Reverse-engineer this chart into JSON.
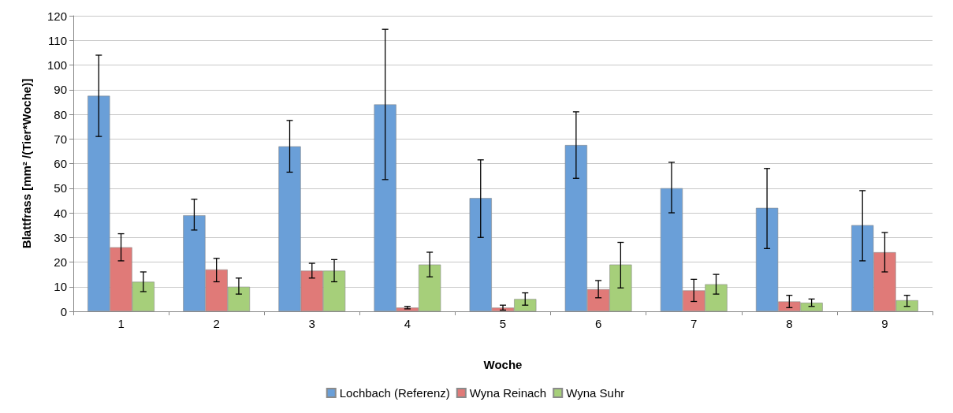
{
  "chart_data": {
    "type": "bar",
    "xlabel": "Woche",
    "ylabel": "Blattfrass [mm² /(Tier*Woche)]",
    "categories": [
      "1",
      "2",
      "3",
      "4",
      "5",
      "6",
      "7",
      "8",
      "9"
    ],
    "series": [
      {
        "name": "Lochbach (Referenz)",
        "color": "#6a9fd8",
        "values": [
          87.5,
          39,
          67,
          84,
          46,
          67.5,
          50,
          42,
          35
        ],
        "errors": [
          [
            71,
            104
          ],
          [
            33,
            45.5
          ],
          [
            56.5,
            77.5
          ],
          [
            53.5,
            114.5
          ],
          [
            30,
            61.5
          ],
          [
            54,
            81
          ],
          [
            40,
            60.5
          ],
          [
            25.5,
            58
          ],
          [
            20.5,
            49
          ]
        ]
      },
      {
        "name": "Wyna Reinach",
        "color": "#e07a78",
        "values": [
          26,
          17,
          16.5,
          1.5,
          1.5,
          9,
          8.5,
          4,
          24
        ],
        "errors": [
          [
            20.5,
            31.5
          ],
          [
            12,
            21.5
          ],
          [
            13.5,
            19.5
          ],
          [
            1,
            2
          ],
          [
            0.5,
            2.5
          ],
          [
            5.5,
            12.5
          ],
          [
            4,
            13
          ],
          [
            1.5,
            6.5
          ],
          [
            16,
            32
          ]
        ]
      },
      {
        "name": "Wyna Suhr",
        "color": "#a6cf7a",
        "values": [
          12,
          10,
          16.5,
          19,
          5,
          19,
          11,
          3.5,
          4.5
        ],
        "errors": [
          [
            8,
            16
          ],
          [
            7,
            13.5
          ],
          [
            12,
            21
          ],
          [
            14,
            24
          ],
          [
            2.5,
            7.5
          ],
          [
            9.5,
            28
          ],
          [
            7,
            15
          ],
          [
            2,
            5
          ],
          [
            2,
            6.5
          ]
        ]
      }
    ],
    "ylim": [
      0,
      120
    ],
    "yticks": [
      0,
      10,
      20,
      30,
      40,
      50,
      60,
      70,
      80,
      90,
      100,
      110,
      120
    ],
    "grid": "y",
    "legend": "bottom"
  }
}
